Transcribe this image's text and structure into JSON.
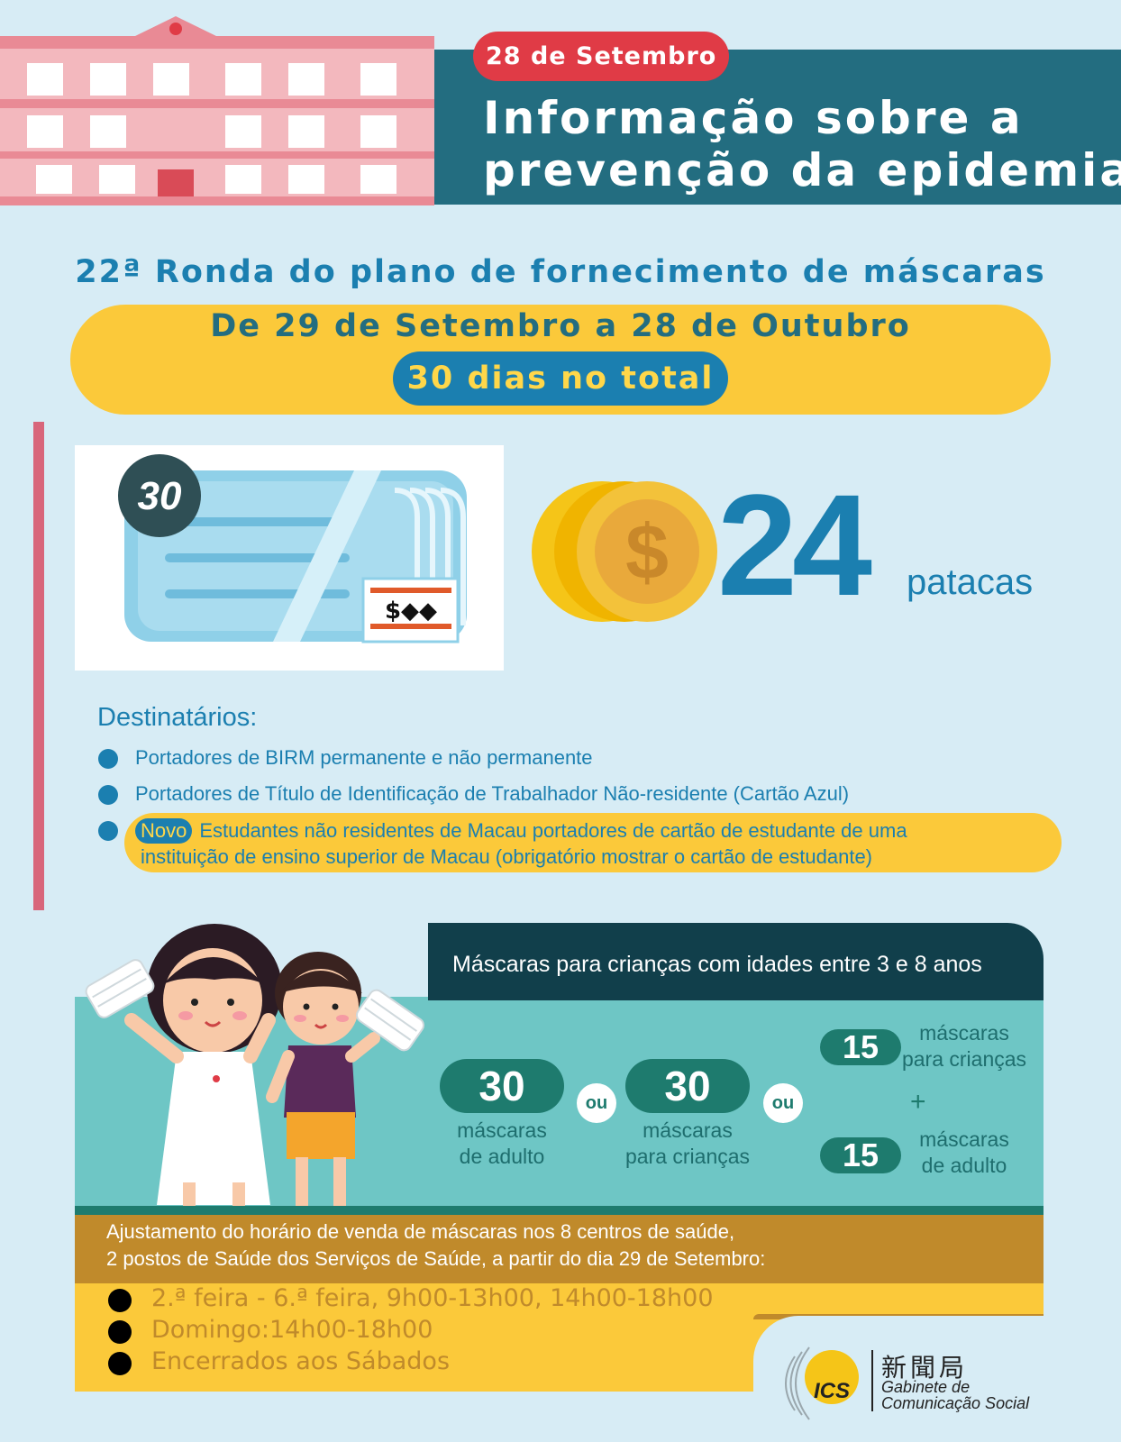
{
  "header": {
    "date": "28 de Setembro",
    "title_line1": "Informação sobre a",
    "title_line2": "prevenção da epidemia"
  },
  "round": {
    "title": "22ª Ronda do plano de fornecimento de máscaras",
    "period": "De 29 de Setembro a 28 de Outubro",
    "total_days": "30 dias no total"
  },
  "package": {
    "mask_count_badge": "30",
    "price_value": "24",
    "price_unit": "patacas"
  },
  "recipients": {
    "title": "Destinatários:",
    "items": [
      "Portadores de BIRM permanente e não permanente",
      "Portadores de Título de Identificação de Trabalhador Não-residente (Cartão Azul)"
    ],
    "new_badge": "Novo",
    "new_item_line1": "Estudantes não residentes de Macau portadores de cartão de estudante de uma",
    "new_item_line2": "instituição de ensino superior de Macau (obrigatório mostrar o cartão de estudante)"
  },
  "children_masks": {
    "title": "Máscaras para crianças com idades entre 3 e 8 anos",
    "option1": {
      "value": "30",
      "caption_line1": "máscaras",
      "caption_line2": "de adulto"
    },
    "option2": {
      "value": "30",
      "caption_line1": "máscaras",
      "caption_line2": "para crianças"
    },
    "or_label": "ou",
    "option3a": {
      "value": "15",
      "caption_line1": "máscaras",
      "caption_line2": "para crianças"
    },
    "plus": "+",
    "option3b": {
      "value": "15",
      "caption_line1": "máscaras",
      "caption_line2": "de adulto"
    }
  },
  "schedule": {
    "note_line1": "Ajustamento do horário de venda de máscaras nos 8 centros de saúde,",
    "note_line2": "2 postos de Saúde dos Serviços de Saúde, a partir do dia 29 de Setembro:",
    "items": [
      "2.ª feira - 6.ª feira, 9h00-13h00, 14h00-18h00",
      "Domingo:14h00-18h00",
      "Encerrados aos Sábados"
    ]
  },
  "logo": {
    "acronym": "ICS",
    "chinese": "新聞局",
    "name_line1": "Gabinete de",
    "name_line2": "Comunicação Social"
  },
  "colors": {
    "header_teal": "#236d80",
    "accent_blue": "#1b7fb0",
    "yellow": "#fbc93a",
    "red_pill": "#e03b46",
    "teal_panel": "#6ec6c5",
    "dark_green": "#1e7b6e",
    "brown": "#c08a2b"
  }
}
